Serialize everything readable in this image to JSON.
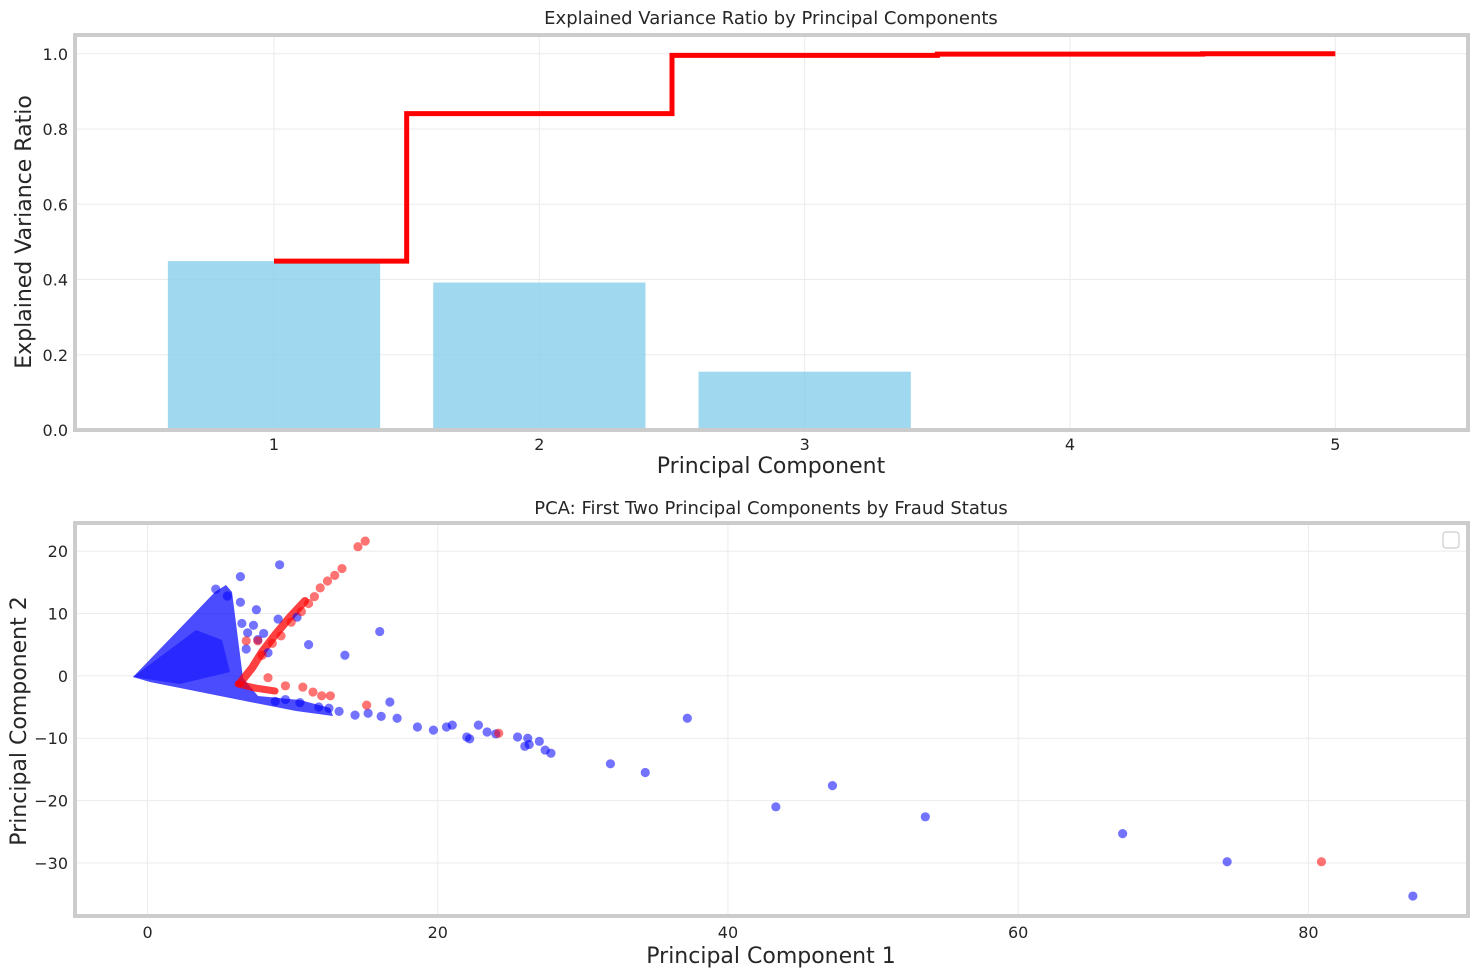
{
  "colors": {
    "bar": "#87CEEB",
    "cumulative_line": "#ff0000",
    "non_fraud_points": "#0000ff",
    "fraud_points": "#ff0000",
    "grid": "#ebebeb",
    "frame": "#cccccc"
  },
  "chart_data": [
    {
      "type": "bar",
      "title": "Explained Variance Ratio by Principal Components",
      "xlabel": "Principal Component",
      "ylabel": "Explained Variance Ratio",
      "categories": [
        1,
        2,
        3,
        4,
        5
      ],
      "xticks": [
        "1",
        "2",
        "3",
        "4",
        "5"
      ],
      "yticks": [
        "0.0",
        "0.2",
        "0.4",
        "0.6",
        "0.8",
        "1.0"
      ],
      "xlim": [
        0.25,
        5.5
      ],
      "ylim": [
        0,
        1.05
      ],
      "grid": true,
      "series": [
        {
          "kind": "bar",
          "values": [
            0.449,
            0.392,
            0.155,
            0.002,
            0.0
          ]
        },
        {
          "kind": "step-line",
          "values": [
            0.449,
            0.841,
            0.996,
            0.999,
            1.0
          ]
        }
      ]
    },
    {
      "type": "scatter",
      "title": "PCA: First Two Principal Components by Fraud Status",
      "xlabel": "Principal Component 1",
      "ylabel": "Principal Component 2",
      "xticks": [
        "0",
        "20",
        "40",
        "60",
        "80"
      ],
      "yticks": [
        "20",
        "10",
        "0",
        "−10",
        "−20",
        "−30"
      ],
      "xlim": [
        -5,
        91
      ],
      "ylim": [
        -38.5,
        24.5
      ],
      "grid": true,
      "legend": "top-right (empty)",
      "series": [
        {
          "kind": "non-fraud",
          "points": [
            [
              4.7,
              13.9
            ],
            [
              5.5,
              12.8
            ],
            [
              6.4,
              11.8
            ],
            [
              7.5,
              10.6
            ],
            [
              9.0,
              9.1
            ],
            [
              10.3,
              9.4
            ],
            [
              9.1,
              17.8
            ],
            [
              6.4,
              15.9
            ],
            [
              16.0,
              7.1
            ],
            [
              11.1,
              5.0
            ],
            [
              13.6,
              3.3
            ],
            [
              6.5,
              8.4
            ],
            [
              6.9,
              6.9
            ],
            [
              7.3,
              8.1
            ],
            [
              8.0,
              6.8
            ],
            [
              7.6,
              5.8
            ],
            [
              6.8,
              4.3
            ],
            [
              8.3,
              3.7
            ],
            [
              13.2,
              -5.7
            ],
            [
              14.3,
              -6.3
            ],
            [
              15.2,
              -6.0
            ],
            [
              16.1,
              -6.5
            ],
            [
              16.7,
              -4.2
            ],
            [
              17.2,
              -6.8
            ],
            [
              18.6,
              -8.2
            ],
            [
              19.7,
              -8.7
            ],
            [
              20.6,
              -8.2
            ],
            [
              21.0,
              -7.9
            ],
            [
              22.0,
              -9.8
            ],
            [
              22.2,
              -10.1
            ],
            [
              22.8,
              -7.9
            ],
            [
              23.4,
              -9.0
            ],
            [
              24.0,
              -9.3
            ],
            [
              25.5,
              -9.8
            ],
            [
              26.0,
              -11.3
            ],
            [
              26.2,
              -10.0
            ],
            [
              26.3,
              -11.0
            ],
            [
              27.0,
              -10.5
            ],
            [
              27.4,
              -11.9
            ],
            [
              27.8,
              -12.4
            ],
            [
              31.9,
              -14.1
            ],
            [
              34.3,
              -15.5
            ],
            [
              37.2,
              -6.8
            ],
            [
              43.3,
              -21.0
            ],
            [
              47.2,
              -17.6
            ],
            [
              53.6,
              -22.6
            ],
            [
              67.2,
              -25.3
            ],
            [
              74.4,
              -29.8
            ],
            [
              87.2,
              -35.3
            ],
            [
              10.5,
              -4.3
            ],
            [
              11.8,
              -5.0
            ],
            [
              12.5,
              -5.2
            ],
            [
              9.5,
              -3.8
            ],
            [
              8.8,
              -4.1
            ]
          ]
        },
        {
          "kind": "fraud",
          "points": [
            [
              15.0,
              21.6
            ],
            [
              14.5,
              20.7
            ],
            [
              13.4,
              17.2
            ],
            [
              12.9,
              16.1
            ],
            [
              12.4,
              15.2
            ],
            [
              11.9,
              14.1
            ],
            [
              11.5,
              12.7
            ],
            [
              11.1,
              11.6
            ],
            [
              10.6,
              10.3
            ],
            [
              9.9,
              8.6
            ],
            [
              9.2,
              6.4
            ],
            [
              8.6,
              5.2
            ],
            [
              7.6,
              5.6
            ],
            [
              6.8,
              5.6
            ],
            [
              7.9,
              3.3
            ],
            [
              8.3,
              -0.3
            ],
            [
              9.5,
              -1.6
            ],
            [
              10.7,
              -1.8
            ],
            [
              11.4,
              -2.6
            ],
            [
              12.0,
              -3.2
            ],
            [
              12.6,
              -3.2
            ],
            [
              15.1,
              -4.7
            ],
            [
              24.2,
              -9.2
            ],
            [
              80.9,
              -29.8
            ]
          ]
        }
      ]
    }
  ]
}
